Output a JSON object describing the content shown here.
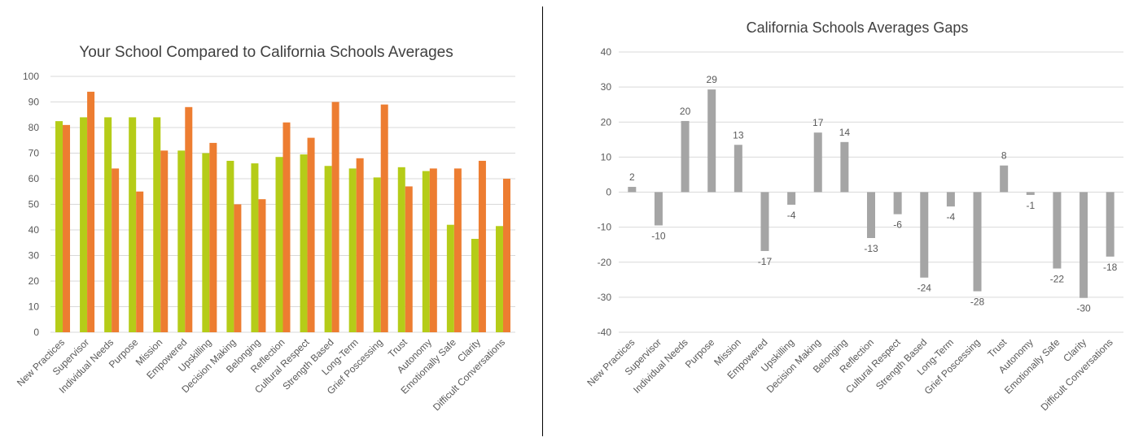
{
  "colors": {
    "school": "#b5cc18",
    "california": "#ed7d31",
    "gap": "#a5a5a5",
    "grid": "#d9d9d9",
    "divider": "#000000",
    "text": "#595959",
    "title": "#404040"
  },
  "chart_data": [
    {
      "type": "bar",
      "title": "Your School Compared to California Schools Averages",
      "xlabel": "",
      "ylabel": "",
      "ylim": [
        0,
        100
      ],
      "yticks": [
        0,
        10,
        20,
        30,
        40,
        50,
        60,
        70,
        80,
        90,
        100
      ],
      "grid": true,
      "legend": "none",
      "categories": [
        "New Practices",
        "Supervisor",
        "Individual Needs",
        "Purpose",
        "Mission",
        "Empowered",
        "Upskilling",
        "Decision Making",
        "Belonging",
        "Reflection",
        "Cultural Respect",
        "Strength Based",
        "Long-Term",
        "Grief Poscessing",
        "Trust",
        "Autonomy",
        "Emotionally Safe",
        "Clarity",
        "Difficult Conversations"
      ],
      "series": [
        {
          "values": [
            82.5,
            84,
            84,
            84,
            84,
            71,
            70,
            67,
            66,
            68.5,
            69.5,
            65,
            64,
            60.5,
            64.5,
            63,
            42,
            36.5,
            41.5
          ],
          "color": "#b5cc18"
        },
        {
          "values": [
            81,
            94,
            64,
            55,
            71,
            88,
            74,
            50,
            52,
            82,
            76,
            90,
            68,
            89,
            57,
            64,
            64,
            67,
            60
          ],
          "color": "#ed7d31"
        }
      ]
    },
    {
      "type": "bar",
      "title": "California Schools Averages Gaps",
      "xlabel": "",
      "ylabel": "",
      "ylim": [
        -40,
        40
      ],
      "yticks": [
        -40,
        -30,
        -20,
        -10,
        0,
        10,
        20,
        30,
        40
      ],
      "grid": true,
      "legend": "none",
      "categories": [
        "New Practices",
        "Supervisor",
        "Individual Needs",
        "Purpose",
        "Mission",
        "Empowered",
        "Upskilling",
        "Decision Making",
        "Belonging",
        "Reflection",
        "Cultural Respect",
        "Strength Based",
        "Long-Term",
        "Grief Poscessing",
        "Trust",
        "Autonomy",
        "Emotionally Safe",
        "Clarity",
        "Difficult Conversations"
      ],
      "values": [
        1.5,
        -9.5,
        20.3,
        29.3,
        13.5,
        -16.8,
        -3.6,
        17,
        14.3,
        -13.1,
        -6.3,
        -24.4,
        -4.1,
        -28.3,
        7.6,
        -0.8,
        -21.8,
        -30.2,
        -18.4
      ],
      "data_labels": [
        "2",
        "-10",
        "20",
        "29",
        "13",
        "-17",
        "-4",
        "17",
        "14",
        "-13",
        "-6",
        "-24",
        "-4",
        "-28",
        "8",
        "-1",
        "-22",
        "-30",
        "-18"
      ],
      "color": "#a5a5a5"
    }
  ]
}
